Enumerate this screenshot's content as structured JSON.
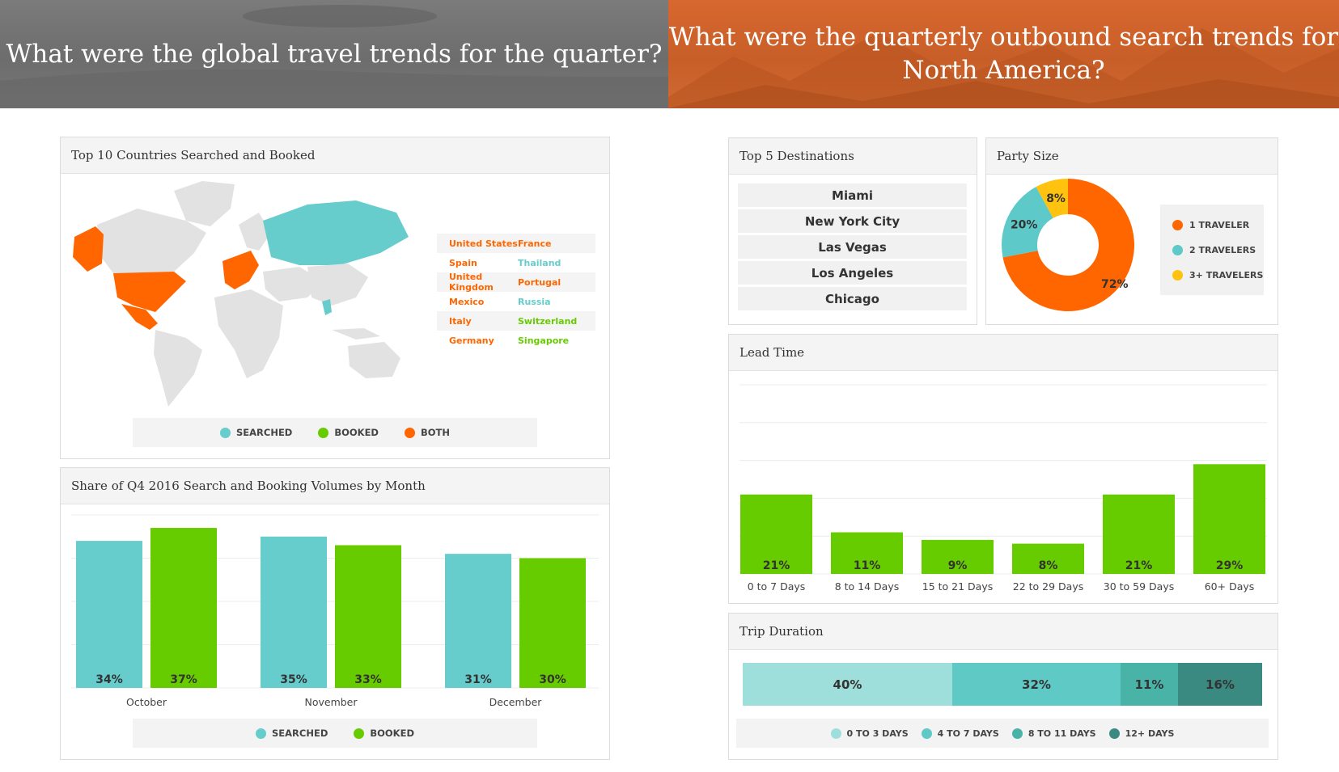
{
  "banners": {
    "left_title": "What were the global travel trends for the quarter?",
    "right_title": "What were the quarterly outbound search trends for North America?"
  },
  "colors": {
    "searched": "#66cccc",
    "booked": "#66cc00",
    "both": "#ff6600",
    "traveler_1": "#ff6600",
    "traveler_2": "#5dc9c9",
    "traveler_3": "#ffc20e",
    "trip_0_3": "#9fdfdb",
    "trip_4_7": "#5fc9c6",
    "trip_8_11": "#4ab3a8",
    "trip_12": "#3a8a82"
  },
  "top10": {
    "title": "Top 10 Countries Searched and Booked",
    "rows": [
      {
        "left": "United States",
        "left_status": "both",
        "right": "France",
        "right_status": "both"
      },
      {
        "left": "Spain",
        "left_status": "both",
        "right": "Thailand",
        "right_status": "searched"
      },
      {
        "left": "United Kingdom",
        "left_status": "both",
        "right": "Portugal",
        "right_status": "both"
      },
      {
        "left": "Mexico",
        "left_status": "both",
        "right": "Russia",
        "right_status": "searched"
      },
      {
        "left": "Italy",
        "left_status": "both",
        "right": "Switzerland",
        "right_status": "booked"
      },
      {
        "left": "Germany",
        "left_status": "both",
        "right": "Singapore",
        "right_status": "booked"
      }
    ],
    "legend": [
      "SEARCHED",
      "BOOKED",
      "BOTH"
    ]
  },
  "share": {
    "title": "Share of Q4 2016 Search and Booking Volumes by Month",
    "legend": [
      "SEARCHED",
      "BOOKED"
    ]
  },
  "destinations": {
    "title": "Top 5 Destinations",
    "items": [
      "Miami",
      "New York City",
      "Las Vegas",
      "Los Angeles",
      "Chicago"
    ]
  },
  "party": {
    "title": "Party Size",
    "legend": [
      "1 TRAVELER",
      "2 TRAVELERS",
      "3+ TRAVELERS"
    ]
  },
  "lead": {
    "title": "Lead Time"
  },
  "trip": {
    "title": "Trip Duration",
    "legend": [
      "0 TO 3 DAYS",
      "4 TO 7 DAYS",
      "8 TO 11 DAYS",
      "12+ DAYS"
    ]
  },
  "chart_data": [
    {
      "type": "bar",
      "title": "Share of Q4 2016 Search and Booking Volumes by Month",
      "categories": [
        "October",
        "November",
        "December"
      ],
      "series": [
        {
          "name": "SEARCHED",
          "values": [
            34,
            35,
            31
          ],
          "labels": [
            "34%",
            "35%",
            "31%"
          ]
        },
        {
          "name": "BOOKED",
          "values": [
            37,
            33,
            30
          ],
          "labels": [
            "37%",
            "33%",
            "30%"
          ]
        }
      ],
      "ylim": [
        0,
        40
      ],
      "grid": true,
      "legend": "bottom"
    },
    {
      "type": "pie",
      "title": "Party Size",
      "categories": [
        "1 TRAVELER",
        "2 TRAVELERS",
        "3+ TRAVELERS"
      ],
      "values": [
        72,
        20,
        8
      ],
      "labels": [
        "72%",
        "20%",
        "8%"
      ],
      "legend": "right"
    },
    {
      "type": "bar",
      "title": "Lead Time",
      "categories": [
        "0 to 7 Days",
        "8 to 14 Days",
        "15 to 21 Days",
        "22 to 29 Days",
        "30 to 59 Days",
        "60+ Days"
      ],
      "values": [
        21,
        11,
        9,
        8,
        21,
        29
      ],
      "labels": [
        "21%",
        "11%",
        "9%",
        "8%",
        "21%",
        "29%"
      ],
      "ylim": [
        0,
        50
      ],
      "grid": true
    },
    {
      "type": "bar",
      "title": "Trip Duration",
      "categories": [
        "0 TO 3 DAYS",
        "4 TO 7 DAYS",
        "8 TO 11 DAYS",
        "12+ DAYS"
      ],
      "values": [
        40,
        32,
        11,
        16
      ],
      "labels": [
        "40%",
        "32%",
        "11%",
        "16%"
      ],
      "stacked": true,
      "legend": "bottom"
    }
  ]
}
